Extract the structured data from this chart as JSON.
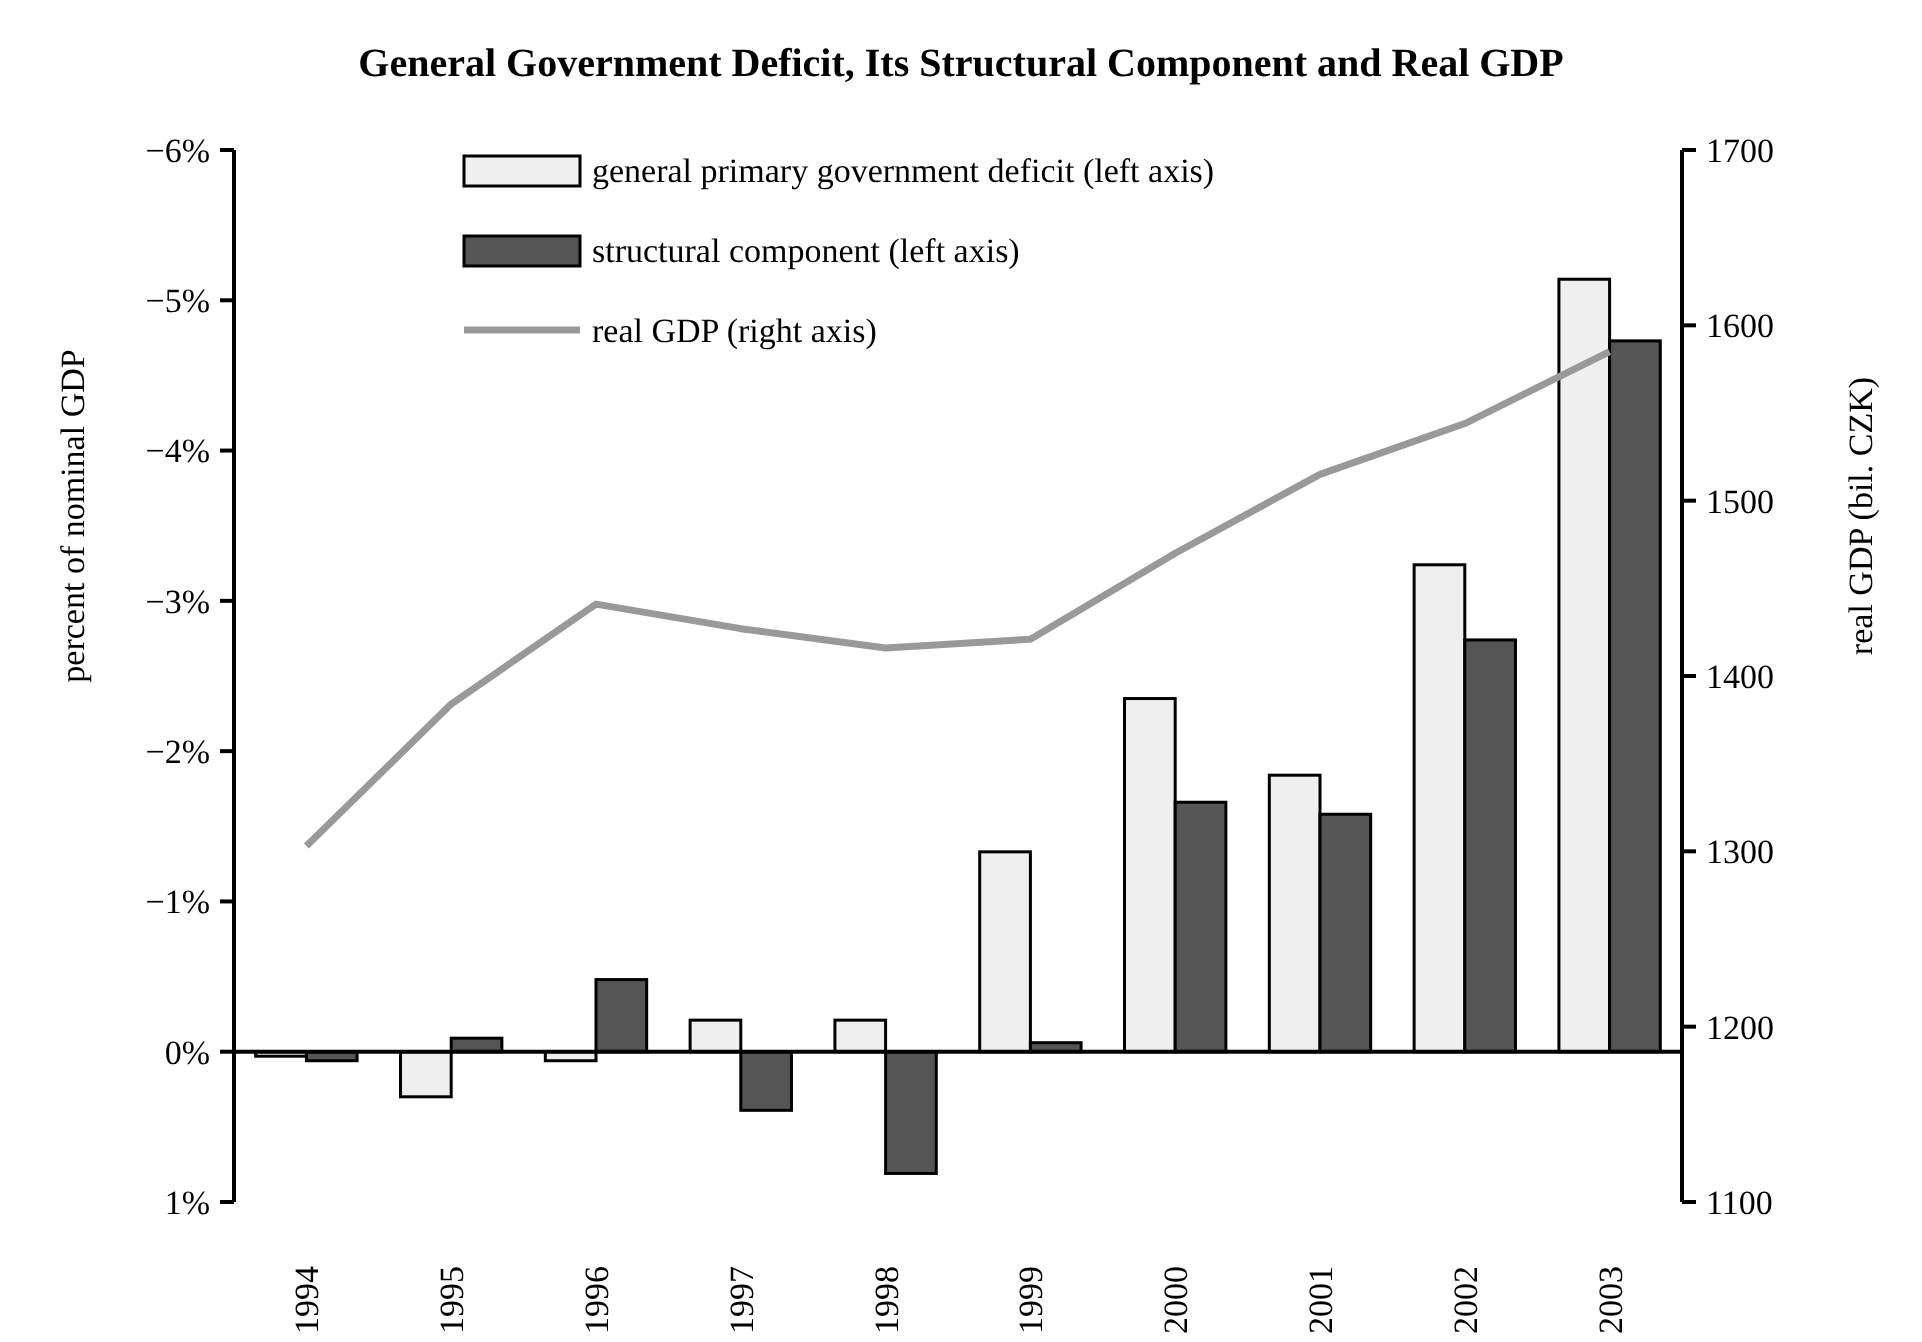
{
  "chart_data": {
    "type": "bar",
    "title": "General Government Deficit, Its Structural Component and Real GDP",
    "ylabel": "percent of nominal GDP",
    "y2label": "real GDP (bil. CZK)",
    "categories": [
      "1994",
      "1995",
      "1996",
      "1997",
      "1998",
      "1999",
      "2000",
      "2001",
      "2002",
      "2003"
    ],
    "series": [
      {
        "name": "general primary government deficit (left axis)",
        "color": "#efefef",
        "values": [
          0.03,
          0.3,
          0.06,
          -0.21,
          -0.21,
          -1.33,
          -2.35,
          -1.84,
          -3.24,
          -5.14
        ]
      },
      {
        "name": "structural component (left axis)",
        "color": "#555555",
        "values": [
          0.06,
          -0.09,
          -0.48,
          0.39,
          0.81,
          -0.06,
          -1.66,
          -1.58,
          -2.74,
          -4.73
        ]
      },
      {
        "name": "real GDP (right axis)",
        "type": "line",
        "axis": "y2",
        "color": "#999999",
        "values": [
          1303,
          1384,
          1441,
          1427,
          1416,
          1421,
          1470,
          1515,
          1544,
          1585
        ]
      }
    ],
    "ylim": [
      1,
      -6
    ],
    "yticks": [
      {
        "value": -6,
        "label": "−6%"
      },
      {
        "value": -5,
        "label": "−5%"
      },
      {
        "value": -4,
        "label": "−4%"
      },
      {
        "value": -3,
        "label": "−3%"
      },
      {
        "value": -2,
        "label": "−2%"
      },
      {
        "value": -1,
        "label": "−1%"
      },
      {
        "value": 0,
        "label": "0%"
      },
      {
        "value": 1,
        "label": "1%"
      }
    ],
    "y2lim": [
      1100,
      1700
    ],
    "y2ticks": [
      1100,
      1200,
      1300,
      1400,
      1500,
      1600,
      1700
    ],
    "legend": "top",
    "marker": "none",
    "line_style": "solid"
  }
}
